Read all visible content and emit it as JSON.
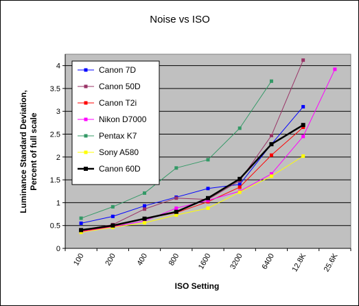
{
  "chart_data": {
    "type": "line",
    "title": "Noise vs ISO",
    "xlabel": "ISO Setting",
    "ylabel_lines": [
      "Luminance Standard Deviation,",
      "Percent of full scale"
    ],
    "categories": [
      "100",
      "200",
      "400",
      "800",
      "1600",
      "3200",
      "6400",
      "12.8K",
      "25.6K"
    ],
    "ylim": [
      0,
      4.25
    ],
    "yticks": [
      "0",
      "0.5",
      "1",
      "1.5",
      "2",
      "2.5",
      "3",
      "3.5",
      "4"
    ],
    "ytick_values": [
      0,
      0.5,
      1,
      1.5,
      2,
      2.5,
      3,
      3.5,
      4
    ],
    "grid": true,
    "legend_position": "top-left",
    "plot_background": "#c0c0c0",
    "series": [
      {
        "name": "Canon 7D",
        "color": "#0000ff",
        "marker": "square",
        "width": 1,
        "points": [
          [
            0,
            0.55
          ],
          [
            1,
            0.7
          ],
          [
            2,
            0.93
          ],
          [
            3,
            1.12
          ],
          [
            4,
            1.31
          ],
          [
            5,
            1.4
          ],
          [
            6,
            2.28
          ],
          [
            7,
            3.1
          ]
        ]
      },
      {
        "name": "Canon 50D",
        "color": "#993366",
        "marker": "square",
        "width": 1,
        "points": [
          [
            0,
            0.4
          ],
          [
            1,
            0.52
          ],
          [
            2,
            0.86
          ],
          [
            3,
            1.1
          ],
          [
            4,
            1.07
          ],
          [
            5,
            1.48
          ],
          [
            6,
            2.47
          ],
          [
            7,
            4.12
          ]
        ]
      },
      {
        "name": "Canon T2i",
        "color": "#ff0000",
        "marker": "square",
        "width": 1,
        "points": [
          [
            0,
            0.37
          ],
          [
            1,
            0.48
          ],
          [
            2,
            0.65
          ],
          [
            3,
            0.78
          ],
          [
            4,
            1.02
          ],
          [
            5,
            1.34
          ],
          [
            6,
            2.04
          ],
          [
            7,
            2.65
          ]
        ]
      },
      {
        "name": "Nikon D7000",
        "color": "#ff00ff",
        "marker": "square",
        "width": 1,
        "points": [
          [
            0,
            0.36
          ],
          [
            1,
            0.47
          ],
          [
            2,
            0.6
          ],
          [
            3,
            0.88
          ],
          [
            4,
            1.05
          ],
          [
            5,
            1.25
          ],
          [
            6,
            1.63
          ],
          [
            7,
            2.45
          ],
          [
            8,
            3.92
          ]
        ]
      },
      {
        "name": "Pentax K7",
        "color": "#339966",
        "marker": "square",
        "width": 1,
        "points": [
          [
            0,
            0.66
          ],
          [
            1,
            0.91
          ],
          [
            2,
            1.21
          ],
          [
            3,
            1.76
          ],
          [
            4,
            1.94
          ],
          [
            5,
            2.63
          ],
          [
            6,
            3.66
          ]
        ]
      },
      {
        "name": "Sony A580",
        "color": "#ffff00",
        "marker": "square",
        "width": 1,
        "points": [
          [
            0,
            0.35
          ],
          [
            1,
            0.46
          ],
          [
            2,
            0.56
          ],
          [
            3,
            0.73
          ],
          [
            4,
            0.88
          ],
          [
            5,
            1.23
          ],
          [
            6,
            1.58
          ],
          [
            7,
            2.02
          ]
        ]
      },
      {
        "name": "Canon 60D",
        "color": "#000000",
        "marker": "square",
        "width": 2.5,
        "points": [
          [
            0,
            0.4
          ],
          [
            1,
            0.5
          ],
          [
            2,
            0.65
          ],
          [
            3,
            0.8
          ],
          [
            4,
            1.1
          ],
          [
            5,
            1.52
          ],
          [
            6,
            2.28
          ],
          [
            7,
            2.7
          ]
        ]
      }
    ]
  }
}
